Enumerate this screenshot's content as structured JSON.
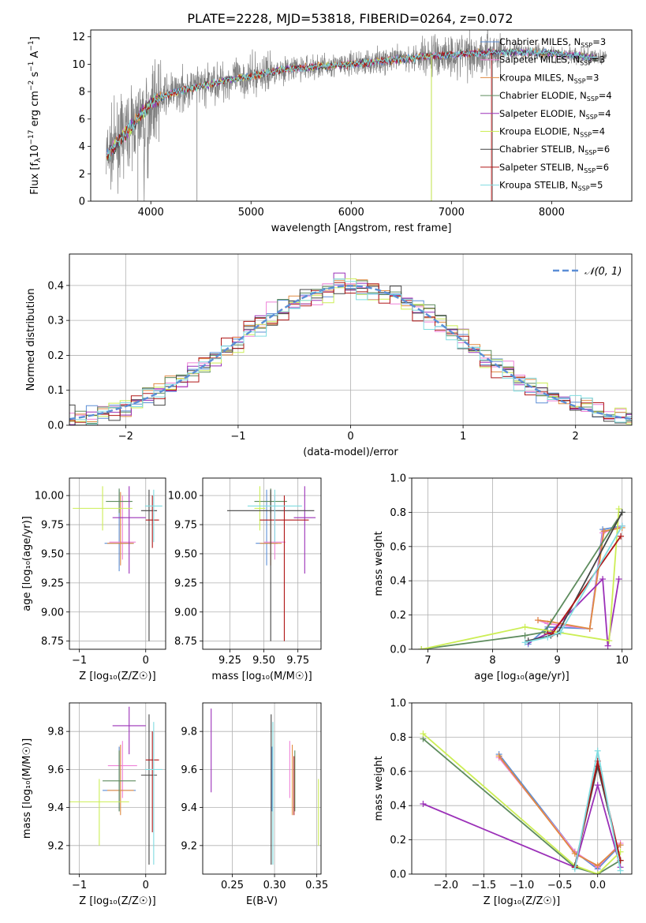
{
  "figure": {
    "title": "PLATE=2228, MJD=53818, FIBERID=0264, z=0.072"
  },
  "models": [
    {
      "name": "Chabrier MILES",
      "nssp": "3",
      "color": "#5b8ed6"
    },
    {
      "name": "Salpeter MILES",
      "nssp": "3",
      "color": "#ee82d8"
    },
    {
      "name": "Kroupa MILES",
      "nssp": "3",
      "color": "#e08a40"
    },
    {
      "name": "Chabrier ELODIE",
      "nssp": "4",
      "color": "#5e8c5e"
    },
    {
      "name": "Salpeter ELODIE",
      "nssp": "4",
      "color": "#9b30b8"
    },
    {
      "name": "Kroupa ELODIE",
      "nssp": "4",
      "color": "#ccee55"
    },
    {
      "name": "Chabrier STELIB",
      "nssp": "6",
      "color": "#444444"
    },
    {
      "name": "Salpeter STELIB",
      "nssp": "6",
      "color": "#b01818"
    },
    {
      "name": "Kroupa STELIB",
      "nssp": "5",
      "color": "#80dce0"
    }
  ],
  "chart_data": [
    {
      "id": "spectrum",
      "type": "line",
      "xlabel": "wavelength [Angstrom, rest frame]",
      "ylabel": "Flux [f_λ10^{-17} erg cm^{-2} s^{-1} A^{-1}]",
      "xlim": [
        3400,
        8800
      ],
      "ylim": [
        0,
        12.5
      ],
      "xticks": [
        4000,
        5000,
        6000,
        7000,
        8000
      ],
      "yticks": [
        0,
        2,
        4,
        6,
        8,
        10,
        12
      ],
      "legend": "right",
      "data_trend": {
        "x": [
          3550,
          3700,
          3850,
          4000,
          4200,
          4500,
          4800,
          5000,
          5300,
          5600,
          6000,
          6400,
          6800,
          7200,
          7600,
          8000,
          8400
        ],
        "y": [
          3.2,
          4.6,
          5.8,
          7.2,
          7.9,
          8.4,
          8.9,
          9.1,
          9.6,
          9.8,
          10.0,
          10.3,
          10.6,
          10.8,
          10.9,
          10.8,
          10.5
        ]
      }
    },
    {
      "id": "residuals",
      "type": "line",
      "xlabel": "(data-model)/error",
      "ylabel": "Normed distribution",
      "xlim": [
        -2.5,
        2.5
      ],
      "ylim": [
        0,
        0.49
      ],
      "xticks": [
        -2,
        -1,
        0,
        1,
        2
      ],
      "yticks": [
        0.0,
        0.1,
        0.2,
        0.3,
        0.4
      ],
      "legend": "top-right",
      "series": [
        {
          "name": "N(0,1)",
          "label_math": "𝒩(0, 1)",
          "color": "#5b8ed6",
          "style": "dashed"
        }
      ]
    },
    {
      "id": "age_vs_Z",
      "type": "scatter",
      "xlabel": "Z [log₁₀(Z/Z☉)]",
      "ylabel": "age  [log₁₀(age/yr)]",
      "xlim": [
        -1.15,
        0.3
      ],
      "ylim": [
        8.68,
        10.15
      ],
      "xticks": [
        -1,
        0
      ],
      "yticks": [
        8.75,
        9.0,
        9.25,
        9.5,
        9.75,
        10.0
      ],
      "points": [
        {
          "model": 0,
          "x": -0.4,
          "y": 9.59,
          "xerr": 0.22,
          "ylo": 9.35,
          "yhi": 10.05
        },
        {
          "model": 1,
          "x": -0.35,
          "y": 9.6,
          "xerr": 0.2,
          "ylo": 9.45,
          "yhi": 10.0
        },
        {
          "model": 2,
          "x": -0.38,
          "y": 9.59,
          "xerr": 0.2,
          "ylo": 9.4,
          "yhi": 10.03
        },
        {
          "model": 3,
          "x": -0.4,
          "y": 9.95,
          "xerr": 0.2,
          "ylo": 9.85,
          "yhi": 10.06
        },
        {
          "model": 4,
          "x": -0.25,
          "y": 9.81,
          "xerr": 0.25,
          "ylo": 9.33,
          "yhi": 10.08
        },
        {
          "model": 5,
          "x": -0.65,
          "y": 9.89,
          "xerr": 0.45,
          "ylo": 9.7,
          "yhi": 10.08
        },
        {
          "model": 6,
          "x": 0.05,
          "y": 9.87,
          "xerr": 0.12,
          "ylo": 8.75,
          "yhi": 10.05
        },
        {
          "model": 7,
          "x": 0.1,
          "y": 9.79,
          "xerr": 0.1,
          "ylo": 9.55,
          "yhi": 10.0
        },
        {
          "model": 8,
          "x": 0.12,
          "y": 9.91,
          "xerr": 0.13,
          "ylo": 9.6,
          "yhi": 10.05
        }
      ]
    },
    {
      "id": "age_vs_mass",
      "type": "scatter",
      "xlabel": "mass [log₁₀(M/M☉)]",
      "ylabel": "",
      "xlim": [
        9.05,
        9.92
      ],
      "ylim": [
        8.68,
        10.15
      ],
      "xticks": [
        9.25,
        9.5,
        9.75
      ],
      "yticks": [
        8.75,
        9.0,
        9.25,
        9.5,
        9.75,
        10.0
      ],
      "points": [
        {
          "model": 0,
          "x": 9.52,
          "y": 9.59,
          "xerr": 0.08,
          "ylo": 9.4,
          "yhi": 10.05
        },
        {
          "model": 1,
          "x": 9.58,
          "y": 9.6,
          "xerr": 0.08,
          "ylo": 9.45,
          "yhi": 10.0
        },
        {
          "model": 2,
          "x": 9.55,
          "y": 9.59,
          "xerr": 0.08,
          "ylo": 9.4,
          "yhi": 10.03
        },
        {
          "model": 3,
          "x": 9.55,
          "y": 9.95,
          "xerr": 0.12,
          "ylo": 9.85,
          "yhi": 10.06
        },
        {
          "model": 4,
          "x": 9.8,
          "y": 9.81,
          "xerr": 0.08,
          "ylo": 9.33,
          "yhi": 10.08
        },
        {
          "model": 5,
          "x": 9.47,
          "y": 9.89,
          "xerr": 0.04,
          "ylo": 9.7,
          "yhi": 10.08
        },
        {
          "model": 6,
          "x": 9.55,
          "y": 9.87,
          "xerr": 0.32,
          "ylo": 8.75,
          "yhi": 10.05
        },
        {
          "model": 7,
          "x": 9.65,
          "y": 9.79,
          "xerr": 0.18,
          "ylo": 8.75,
          "yhi": 10.0
        },
        {
          "model": 8,
          "x": 9.58,
          "y": 9.91,
          "xerr": 0.2,
          "ylo": 9.6,
          "yhi": 10.05
        }
      ]
    },
    {
      "id": "massweight_vs_age",
      "type": "line",
      "xlabel": "age  [log₁₀(age/yr)]",
      "ylabel": "mass weight",
      "xlim": [
        6.75,
        10.15
      ],
      "ylim": [
        0,
        1.0
      ],
      "xticks": [
        7,
        8,
        9,
        10
      ],
      "yticks": [
        0.0,
        0.2,
        0.4,
        0.6,
        0.8,
        1.0
      ],
      "series": [
        {
          "model": 0,
          "x": [
            8.55,
            8.85,
            9.5,
            9.7,
            10.0
          ],
          "y": [
            0.03,
            0.13,
            0.12,
            0.7,
            0.72
          ]
        },
        {
          "model": 1,
          "x": [
            8.7,
            8.85,
            9.5,
            9.7,
            10.0
          ],
          "y": [
            0.17,
            0.15,
            0.12,
            0.68,
            0.72
          ]
        },
        {
          "model": 2,
          "x": [
            8.7,
            8.9,
            9.5,
            9.72,
            10.0
          ],
          "y": [
            0.17,
            0.16,
            0.12,
            0.69,
            0.71
          ]
        },
        {
          "model": 3,
          "x": [
            6.9,
            8.5,
            8.8,
            10.0
          ],
          "y": [
            0.0,
            0.08,
            0.1,
            0.8
          ]
        },
        {
          "model": 4,
          "x": [
            8.55,
            8.9,
            9.7,
            9.78,
            9.95
          ],
          "y": [
            0.04,
            0.1,
            0.41,
            0.02,
            0.41
          ]
        },
        {
          "model": 5,
          "x": [
            6.9,
            8.5,
            9.8,
            9.95
          ],
          "y": [
            0.0,
            0.13,
            0.05,
            0.82
          ]
        },
        {
          "model": 6,
          "x": [
            8.55,
            8.9,
            9.0,
            10.0
          ],
          "y": [
            0.05,
            0.08,
            0.09,
            0.8
          ]
        },
        {
          "model": 7,
          "x": [
            8.85,
            8.92,
            9.98
          ],
          "y": [
            0.09,
            0.09,
            0.66
          ]
        },
        {
          "model": 8,
          "x": [
            8.5,
            8.85,
            9.05,
            10.0
          ],
          "y": [
            0.04,
            0.07,
            0.1,
            0.72
          ]
        }
      ]
    },
    {
      "id": "mass_vs_Z",
      "type": "scatter",
      "xlabel": "Z [log₁₀(Z/Z☉)]",
      "ylabel": "mass [log₁₀(M/M☉)]",
      "xlim": [
        -1.15,
        0.3
      ],
      "ylim": [
        9.05,
        9.95
      ],
      "xticks": [
        -1,
        0
      ],
      "yticks": [
        9.2,
        9.4,
        9.6,
        9.8
      ],
      "points": [
        {
          "model": 0,
          "x": -0.4,
          "y": 9.49,
          "xerr": 0.25,
          "ylo": 9.38,
          "yhi": 9.72
        },
        {
          "model": 1,
          "x": -0.35,
          "y": 9.62,
          "xerr": 0.22,
          "ylo": 9.45,
          "yhi": 9.75
        },
        {
          "model": 2,
          "x": -0.38,
          "y": 9.49,
          "xerr": 0.2,
          "ylo": 9.36,
          "yhi": 9.73
        },
        {
          "model": 3,
          "x": -0.4,
          "y": 9.54,
          "xerr": 0.25,
          "ylo": 9.38,
          "yhi": 9.7
        },
        {
          "model": 4,
          "x": -0.25,
          "y": 9.83,
          "xerr": 0.25,
          "ylo": 9.68,
          "yhi": 9.93
        },
        {
          "model": 5,
          "x": -0.7,
          "y": 9.43,
          "xerr": 0.45,
          "ylo": 9.2,
          "yhi": 9.55
        },
        {
          "model": 6,
          "x": 0.05,
          "y": 9.57,
          "xerr": 0.12,
          "ylo": 9.1,
          "yhi": 9.89
        },
        {
          "model": 7,
          "x": 0.1,
          "y": 9.65,
          "xerr": 0.1,
          "ylo": 9.27,
          "yhi": 9.8
        },
        {
          "model": 8,
          "x": 0.12,
          "y": 9.6,
          "xerr": 0.13,
          "ylo": 9.1,
          "yhi": 9.85
        }
      ]
    },
    {
      "id": "mass_vs_EBV",
      "type": "scatter",
      "xlabel": "E(B-V)",
      "ylabel": "",
      "xlim": [
        0.215,
        0.355
      ],
      "ylim": [
        9.05,
        9.95
      ],
      "xticks": [
        0.25,
        0.3,
        0.35
      ],
      "yticks": [
        9.2,
        9.4,
        9.6,
        9.8
      ],
      "points": [
        {
          "model": 0,
          "x": 0.297,
          "ylo": 9.38,
          "yhi": 9.72
        },
        {
          "model": 1,
          "x": 0.318,
          "ylo": 9.45,
          "yhi": 9.75
        },
        {
          "model": 2,
          "x": 0.321,
          "ylo": 9.36,
          "yhi": 9.73
        },
        {
          "model": 3,
          "x": 0.324,
          "ylo": 9.38,
          "yhi": 9.7
        },
        {
          "model": 4,
          "x": 0.225,
          "ylo": 9.48,
          "yhi": 9.92
        },
        {
          "model": 5,
          "x": 0.352,
          "ylo": 9.2,
          "yhi": 9.55
        },
        {
          "model": 6,
          "x": 0.296,
          "ylo": 9.1,
          "yhi": 9.89
        },
        {
          "model": 7,
          "x": 0.323,
          "ylo": 9.36,
          "yhi": 9.67
        },
        {
          "model": 8,
          "x": 0.298,
          "ylo": 9.1,
          "yhi": 9.85
        }
      ]
    },
    {
      "id": "massweight_vs_Z",
      "type": "line",
      "xlabel": "Z [log₁₀(Z/Z☉)]",
      "ylabel": "mass weight",
      "xlim": [
        -2.45,
        0.45
      ],
      "ylim": [
        0,
        1.0
      ],
      "xticks": [
        -2.0,
        -1.5,
        -1.0,
        -0.5,
        0.0
      ],
      "yticks": [
        0.0,
        0.2,
        0.4,
        0.6,
        0.8,
        1.0
      ],
      "series": [
        {
          "model": 0,
          "x": [
            -1.3,
            -0.3,
            0.0,
            0.3
          ],
          "y": [
            0.7,
            0.13,
            0.03,
            0.17
          ]
        },
        {
          "model": 1,
          "x": [
            -1.3,
            -0.3,
            0.0,
            0.3
          ],
          "y": [
            0.68,
            0.13,
            0.04,
            0.18
          ]
        },
        {
          "model": 2,
          "x": [
            -1.3,
            -0.3,
            0.0,
            0.3
          ],
          "y": [
            0.69,
            0.12,
            0.05,
            0.17
          ]
        },
        {
          "model": 3,
          "x": [
            -2.3,
            -0.3,
            0.0,
            0.3
          ],
          "y": [
            0.79,
            0.04,
            0.0,
            0.08
          ]
        },
        {
          "model": 4,
          "x": [
            -2.3,
            -0.3,
            0.0,
            0.3
          ],
          "y": [
            0.41,
            0.04,
            0.52,
            0.04
          ]
        },
        {
          "model": 5,
          "x": [
            -2.3,
            -0.3,
            0.0,
            0.3
          ],
          "y": [
            0.82,
            0.05,
            0.0,
            0.13
          ]
        },
        {
          "model": 6,
          "x": [
            -0.3,
            0.0,
            0.3
          ],
          "y": [
            0.05,
            0.63,
            0.08
          ]
        },
        {
          "model": 7,
          "x": [
            -0.3,
            0.0,
            0.3
          ],
          "y": [
            0.04,
            0.66,
            0.08
          ]
        },
        {
          "model": 8,
          "x": [
            -0.3,
            0.0,
            0.3
          ],
          "y": [
            0.03,
            0.72,
            0.02
          ]
        }
      ]
    }
  ]
}
